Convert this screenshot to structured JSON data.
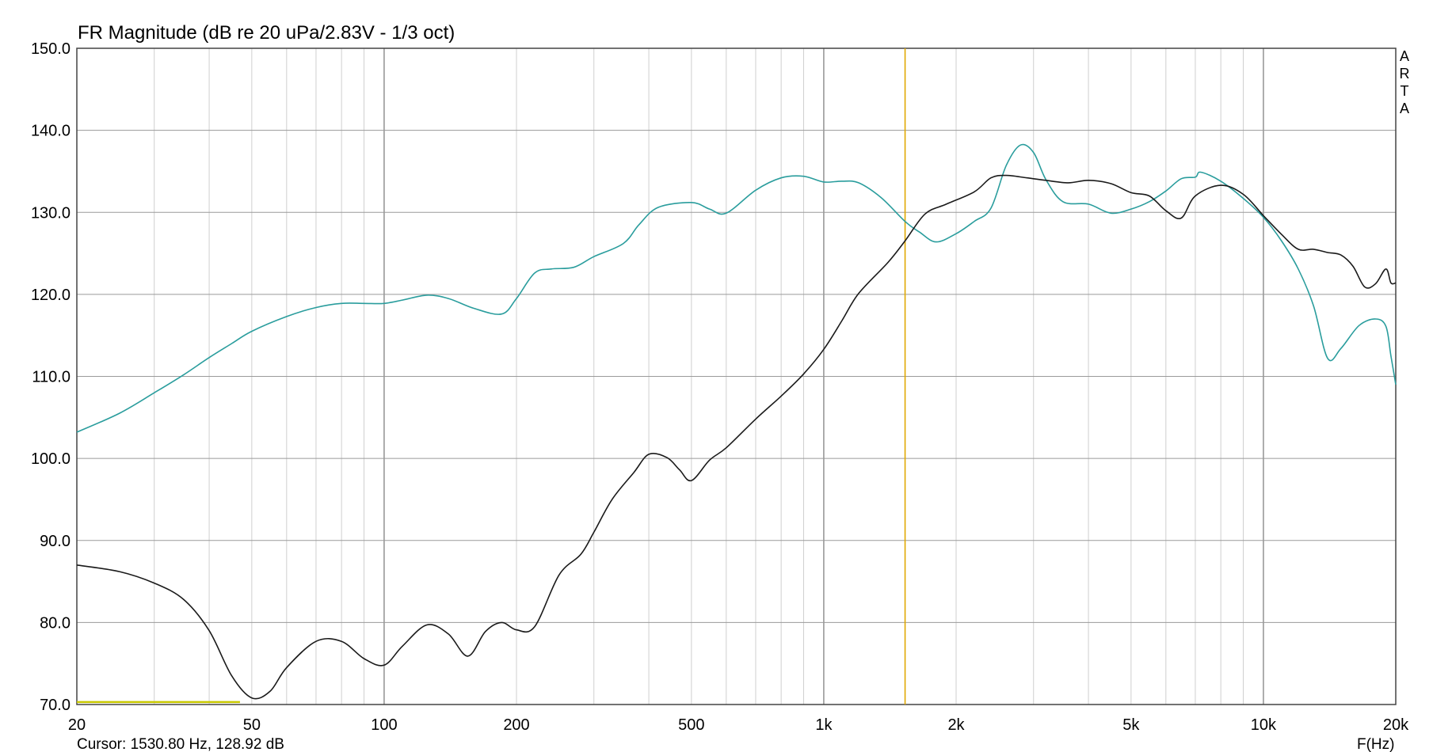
{
  "chart_data": {
    "type": "line",
    "title": "FR Magnitude (dB re 20 uPa/2.83V - 1/3 oct)",
    "xlabel": "F(Hz)",
    "ylabel": "",
    "x_scale": "log",
    "xlim": [
      20,
      20000
    ],
    "ylim": [
      70,
      150
    ],
    "grid": true,
    "x_ticks": [
      {
        "value": 20,
        "label": "20"
      },
      {
        "value": 50,
        "label": "50"
      },
      {
        "value": 100,
        "label": "100"
      },
      {
        "value": 200,
        "label": "200"
      },
      {
        "value": 500,
        "label": "500"
      },
      {
        "value": 1000,
        "label": "1k"
      },
      {
        "value": 2000,
        "label": "2k"
      },
      {
        "value": 5000,
        "label": "5k"
      },
      {
        "value": 10000,
        "label": "10k"
      },
      {
        "value": 20000,
        "label": "20k"
      }
    ],
    "y_ticks": [
      {
        "value": 70,
        "label": "70.0"
      },
      {
        "value": 80,
        "label": "80.0"
      },
      {
        "value": 90,
        "label": "90.0"
      },
      {
        "value": 100,
        "label": "100.0"
      },
      {
        "value": 110,
        "label": "110.0"
      },
      {
        "value": 120,
        "label": "120.0"
      },
      {
        "value": 130,
        "label": "130.0"
      },
      {
        "value": 140,
        "label": "140.0"
      },
      {
        "value": 150,
        "label": "150.0"
      }
    ],
    "cursor": {
      "x": 1530.8,
      "text": "Cursor: 1530.80 Hz, 128.92 dB",
      "color": "#e0a800"
    },
    "baseline_marker": {
      "x": [
        20,
        47
      ],
      "y": 70.3,
      "color": "#c8c800"
    },
    "brand": "A R T A",
    "series": [
      {
        "color": "#2a9d9d",
        "points": [
          [
            20,
            103.2
          ],
          [
            25,
            105.5
          ],
          [
            30,
            108
          ],
          [
            35,
            110.2
          ],
          [
            40,
            112.3
          ],
          [
            45,
            114
          ],
          [
            50,
            115.5
          ],
          [
            60,
            117.3
          ],
          [
            70,
            118.4
          ],
          [
            80,
            118.9
          ],
          [
            90,
            118.9
          ],
          [
            100,
            118.9
          ],
          [
            110,
            119.3
          ],
          [
            125,
            119.9
          ],
          [
            140,
            119.5
          ],
          [
            160,
            118.3
          ],
          [
            185,
            117.6
          ],
          [
            200,
            119.5
          ],
          [
            220,
            122.6
          ],
          [
            240,
            123.1
          ],
          [
            270,
            123.3
          ],
          [
            300,
            124.6
          ],
          [
            350,
            126.2
          ],
          [
            380,
            128.5
          ],
          [
            420,
            130.6
          ],
          [
            500,
            131.2
          ],
          [
            550,
            130.4
          ],
          [
            600,
            129.9
          ],
          [
            700,
            132.7
          ],
          [
            800,
            134.2
          ],
          [
            900,
            134.4
          ],
          [
            1000,
            133.7
          ],
          [
            1100,
            133.8
          ],
          [
            1200,
            133.6
          ],
          [
            1350,
            131.8
          ],
          [
            1530,
            128.9
          ],
          [
            1650,
            127.6
          ],
          [
            1800,
            126.4
          ],
          [
            2000,
            127.4
          ],
          [
            2200,
            128.9
          ],
          [
            2400,
            130.5
          ],
          [
            2600,
            135.7
          ],
          [
            2800,
            138.2
          ],
          [
            3000,
            137.3
          ],
          [
            3200,
            134
          ],
          [
            3500,
            131.3
          ],
          [
            4000,
            131
          ],
          [
            4500,
            129.9
          ],
          [
            5000,
            130.4
          ],
          [
            5500,
            131.3
          ],
          [
            6000,
            132.6
          ],
          [
            6500,
            134.1
          ],
          [
            7000,
            134.3
          ],
          [
            7200,
            134.9
          ],
          [
            8000,
            133.8
          ],
          [
            9000,
            131.7
          ],
          [
            10000,
            129.4
          ],
          [
            11000,
            126.5
          ],
          [
            12000,
            123.1
          ],
          [
            13000,
            118.6
          ],
          [
            14000,
            112.2
          ],
          [
            15000,
            113.4
          ],
          [
            16500,
            116.2
          ],
          [
            18000,
            117
          ],
          [
            19000,
            116.1
          ],
          [
            19500,
            112.5
          ],
          [
            20000,
            109
          ]
        ]
      },
      {
        "color": "#1a1a1a",
        "points": [
          [
            20,
            87
          ],
          [
            25,
            86.2
          ],
          [
            30,
            84.8
          ],
          [
            35,
            82.8
          ],
          [
            40,
            79
          ],
          [
            45,
            73.5
          ],
          [
            50,
            70.8
          ],
          [
            55,
            71.6
          ],
          [
            60,
            74.5
          ],
          [
            70,
            77.7
          ],
          [
            80,
            77.7
          ],
          [
            90,
            75.6
          ],
          [
            100,
            74.8
          ],
          [
            110,
            77.1
          ],
          [
            125,
            79.7
          ],
          [
            140,
            78.6
          ],
          [
            155,
            75.9
          ],
          [
            170,
            78.9
          ],
          [
            185,
            80
          ],
          [
            200,
            79.1
          ],
          [
            220,
            79.5
          ],
          [
            250,
            85.8
          ],
          [
            280,
            88.3
          ],
          [
            300,
            91
          ],
          [
            330,
            95
          ],
          [
            370,
            98.3
          ],
          [
            400,
            100.5
          ],
          [
            440,
            100.1
          ],
          [
            470,
            98.6
          ],
          [
            500,
            97.3
          ],
          [
            550,
            99.8
          ],
          [
            600,
            101.3
          ],
          [
            700,
            104.8
          ],
          [
            800,
            107.6
          ],
          [
            900,
            110.3
          ],
          [
            1000,
            113.3
          ],
          [
            1100,
            116.8
          ],
          [
            1200,
            120.1
          ],
          [
            1400,
            123.9
          ],
          [
            1530,
            126.5
          ],
          [
            1700,
            129.8
          ],
          [
            1900,
            131
          ],
          [
            2200,
            132.5
          ],
          [
            2400,
            134.2
          ],
          [
            2600,
            134.5
          ],
          [
            2900,
            134.2
          ],
          [
            3200,
            133.9
          ],
          [
            3600,
            133.6
          ],
          [
            4000,
            133.9
          ],
          [
            4500,
            133.5
          ],
          [
            5000,
            132.4
          ],
          [
            5500,
            132
          ],
          [
            6000,
            130.2
          ],
          [
            6500,
            129.3
          ],
          [
            7000,
            132
          ],
          [
            8000,
            133.3
          ],
          [
            9000,
            132.2
          ],
          [
            10000,
            129.6
          ],
          [
            11000,
            127.3
          ],
          [
            12000,
            125.5
          ],
          [
            13000,
            125.5
          ],
          [
            14000,
            125.1
          ],
          [
            15000,
            124.8
          ],
          [
            16000,
            123.4
          ],
          [
            17000,
            120.9
          ],
          [
            18000,
            121.3
          ],
          [
            19000,
            123.1
          ],
          [
            19500,
            121.4
          ],
          [
            20000,
            121.4
          ]
        ]
      }
    ]
  }
}
